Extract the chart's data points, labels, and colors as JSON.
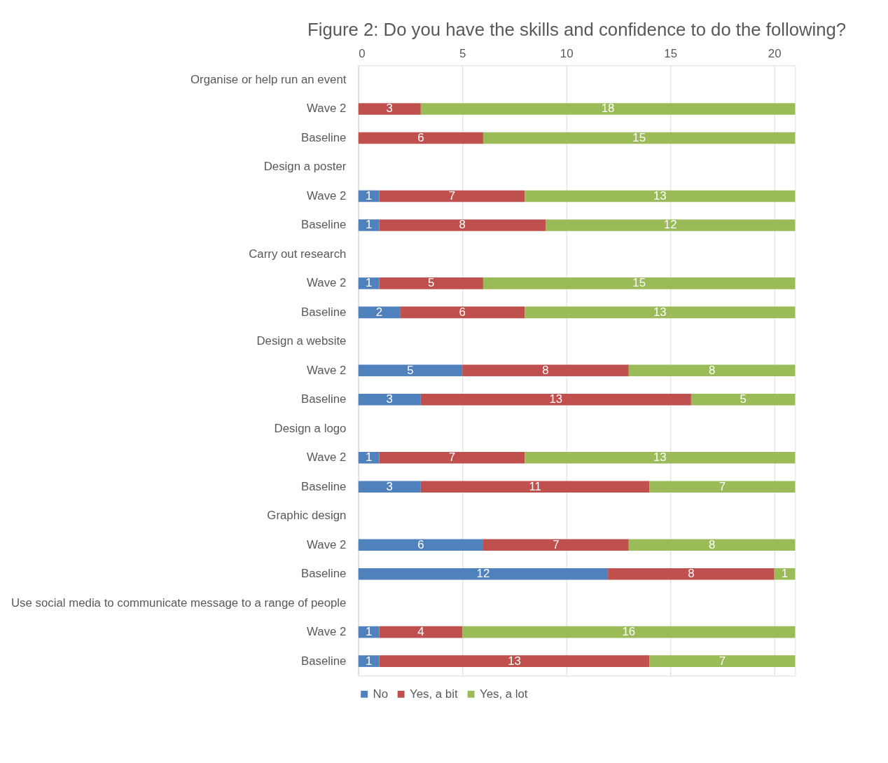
{
  "chart_data": {
    "type": "bar",
    "orientation": "horizontal",
    "stacked": true,
    "title": "Figure 2: Do you have the skills and confidence to do the following?",
    "categories": [
      "Organise  or help run an event",
      "Wave 2",
      "Baseline",
      "Design a poster",
      "Wave 2",
      "Baseline",
      "Carry out research",
      "Wave 2",
      "Baseline",
      "Design a website",
      "Wave 2",
      "Baseline",
      "Design a logo",
      "Wave 2",
      "Baseline",
      "Graphic design",
      "Wave 2",
      "Baseline",
      "Use social media to communicate message to a range of people",
      "Wave 2",
      "Baseline"
    ],
    "series": [
      {
        "name": "No",
        "color": "#4f81bd",
        "values": [
          null,
          null,
          null,
          null,
          1,
          1,
          null,
          1,
          2,
          null,
          5,
          3,
          null,
          1,
          3,
          null,
          6,
          12,
          null,
          1,
          1
        ]
      },
      {
        "name": "Yes, a bit",
        "color": "#c0504d",
        "values": [
          null,
          3,
          6,
          null,
          7,
          8,
          null,
          5,
          6,
          null,
          8,
          13,
          null,
          7,
          11,
          null,
          7,
          8,
          null,
          4,
          13
        ]
      },
      {
        "name": "Yes, a lot",
        "color": "#9bbb59",
        "values": [
          null,
          18,
          15,
          null,
          13,
          12,
          null,
          15,
          13,
          null,
          8,
          5,
          null,
          13,
          7,
          null,
          8,
          1,
          null,
          16,
          7
        ]
      }
    ],
    "xlim": [
      0,
      21
    ],
    "xticks": [
      0,
      5,
      10,
      15,
      20
    ],
    "grid": "x",
    "legend": "bottom",
    "data_labels": true
  }
}
